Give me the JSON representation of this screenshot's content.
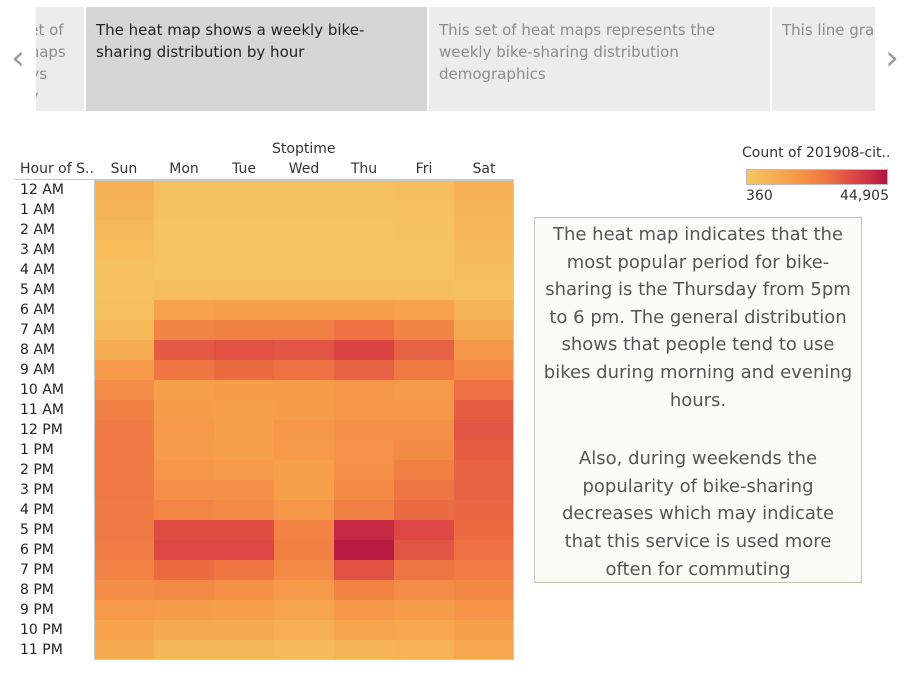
{
  "navigation": {
    "prev_arrow": "‹",
    "next_arrow": "›",
    "captions": [
      {
        "text": "This set of heat maps displays weekly trips per hours",
        "state": "inactive"
      },
      {
        "text": "The heat map shows a weekly bike-sharing distribution by hour",
        "state": "active"
      },
      {
        "text": "This set of heat maps represents the weekly bike-sharing distribution demographics",
        "state": "inactive"
      },
      {
        "text": "This line graph helps determine the time of the trip",
        "state": "inactive"
      }
    ]
  },
  "heatmap": {
    "column_title": "Stoptime",
    "row_header": "Hour of S..",
    "days": [
      "Sun",
      "Mon",
      "Tue",
      "Wed",
      "Thu",
      "Fri",
      "Sat"
    ],
    "hours": [
      "12 AM",
      "1 AM",
      "2 AM",
      "3 AM",
      "4 AM",
      "5 AM",
      "6 AM",
      "7 AM",
      "8 AM",
      "9 AM",
      "10 AM",
      "11 AM",
      "12 PM",
      "1 PM",
      "2 PM",
      "3 PM",
      "4 PM",
      "5 PM",
      "6 PM",
      "7 PM",
      "8 PM",
      "9 PM",
      "10 PM",
      "11 PM"
    ],
    "colors": {
      "low": "#f5c75f",
      "mid1": "#f7a04a",
      "mid2": "#f07843",
      "mid3": "#d83e44",
      "high": "#b21540",
      "grid": "#ffffff",
      "axis": "#c8c8c8"
    },
    "intensity": [
      [
        0.18,
        0.05,
        0.05,
        0.05,
        0.05,
        0.07,
        0.18
      ],
      [
        0.14,
        0.03,
        0.03,
        0.03,
        0.03,
        0.04,
        0.15
      ],
      [
        0.11,
        0.02,
        0.02,
        0.02,
        0.02,
        0.03,
        0.13
      ],
      [
        0.08,
        0.02,
        0.02,
        0.02,
        0.02,
        0.02,
        0.1
      ],
      [
        0.05,
        0.02,
        0.02,
        0.02,
        0.02,
        0.02,
        0.07
      ],
      [
        0.04,
        0.07,
        0.07,
        0.07,
        0.07,
        0.07,
        0.05
      ],
      [
        0.05,
        0.28,
        0.3,
        0.3,
        0.3,
        0.28,
        0.14
      ],
      [
        0.1,
        0.47,
        0.5,
        0.5,
        0.58,
        0.47,
        0.22
      ],
      [
        0.2,
        0.68,
        0.72,
        0.7,
        0.78,
        0.65,
        0.35
      ],
      [
        0.34,
        0.56,
        0.6,
        0.58,
        0.64,
        0.55,
        0.44
      ],
      [
        0.42,
        0.3,
        0.32,
        0.32,
        0.36,
        0.34,
        0.58
      ],
      [
        0.5,
        0.32,
        0.3,
        0.32,
        0.36,
        0.36,
        0.66
      ],
      [
        0.53,
        0.34,
        0.3,
        0.36,
        0.4,
        0.4,
        0.7
      ],
      [
        0.55,
        0.33,
        0.3,
        0.34,
        0.38,
        0.44,
        0.66
      ],
      [
        0.55,
        0.36,
        0.34,
        0.3,
        0.4,
        0.5,
        0.64
      ],
      [
        0.55,
        0.4,
        0.4,
        0.3,
        0.44,
        0.56,
        0.64
      ],
      [
        0.53,
        0.46,
        0.44,
        0.36,
        0.5,
        0.6,
        0.62
      ],
      [
        0.54,
        0.74,
        0.74,
        0.48,
        0.9,
        0.76,
        0.6
      ],
      [
        0.52,
        0.76,
        0.76,
        0.5,
        0.97,
        0.7,
        0.58
      ],
      [
        0.48,
        0.6,
        0.56,
        0.44,
        0.72,
        0.56,
        0.52
      ],
      [
        0.42,
        0.44,
        0.4,
        0.34,
        0.48,
        0.42,
        0.45
      ],
      [
        0.34,
        0.32,
        0.3,
        0.26,
        0.36,
        0.32,
        0.38
      ],
      [
        0.28,
        0.22,
        0.22,
        0.18,
        0.26,
        0.24,
        0.3
      ],
      [
        0.22,
        0.12,
        0.12,
        0.1,
        0.14,
        0.16,
        0.24
      ]
    ]
  },
  "legend": {
    "title": "Count of 201908-cit..",
    "min_label": "360",
    "max_label": "44,905"
  },
  "annotation": {
    "paragraph1": "The heat map indicates that the most popular period for bike-sharing is the Thursday from 5pm to 6 pm. The general distribution shows that people tend to use bikes during morning and evening hours.",
    "paragraph2": "Also, during weekends the popularity of bike-sharing decreases which may indicate that this service is used more often for commuting"
  }
}
